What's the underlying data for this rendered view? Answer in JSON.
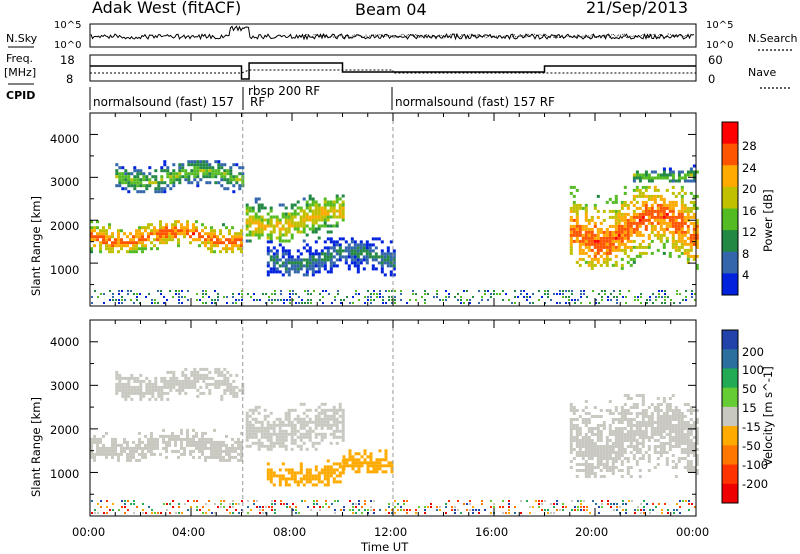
{
  "header": {
    "site": "Adak West (fitACF)",
    "beam": "Beam 04",
    "date": "21/Sep/2013"
  },
  "top_panel": {
    "left_label": "N.Sky",
    "right_label": "N.Search",
    "left_ticks": [
      "10^5",
      "10^0"
    ],
    "right_ticks": [
      "10^5",
      "10^0"
    ]
  },
  "freq_panel": {
    "left_label_1": "Freq.",
    "left_label_2": "[MHz]",
    "right_label": "Nave",
    "left_ticks": [
      "18",
      "8"
    ],
    "right_ticks": [
      "60",
      "0"
    ]
  },
  "cpid": {
    "label": "CPID",
    "modes": [
      {
        "name": "normalsound (fast) 157",
        "suffix": "RF"
      },
      {
        "name": "rbsp 200 RF",
        "suffix": ""
      },
      {
        "name": "normalsound (fast) 157 RF",
        "suffix": ""
      }
    ]
  },
  "x_axis": {
    "label": "Time UT",
    "ticks": [
      "00:00",
      "04:00",
      "08:00",
      "12:00",
      "16:00",
      "20:00",
      "00:00"
    ]
  },
  "power_panel": {
    "ylabel": "Slant Range [km]",
    "yticks": [
      "4000",
      "3000",
      "2000",
      "1000"
    ],
    "colorbar_label": "Power [dB]",
    "colorbar_ticks": [
      "28",
      "24",
      "20",
      "16",
      "12",
      "8",
      "4"
    ],
    "colorbar_colors": [
      "#ff0000",
      "#ff5500",
      "#ffaa00",
      "#c0c000",
      "#55bb22",
      "#228844",
      "#3366aa",
      "#0022dd"
    ]
  },
  "velocity_panel": {
    "ylabel": "Slant Range [km]",
    "yticks": [
      "4000",
      "3000",
      "2000",
      "1000"
    ],
    "colorbar_label": "Velocity [m s^-1]",
    "colorbar_ticks": [
      "200",
      "100",
      "50",
      "15",
      "-15",
      "-50",
      "-100",
      "-200"
    ],
    "colorbar_colors": [
      "#2244aa",
      "#2a6f9e",
      "#22aa55",
      "#66cc33",
      "#c8c8c0",
      "#ffaa00",
      "#ff7700",
      "#ff3300",
      "#ee0000"
    ]
  },
  "chart_data": [
    {
      "type": "heatmap",
      "title": "Adak West (fitACF)",
      "quantity": "Power",
      "xlabel": "Time UT",
      "ylabel": "Slant Range [km]",
      "xlim": [
        "00:00",
        "00:00"
      ],
      "ylim": [
        0,
        4500
      ],
      "colorbar": {
        "label": "Power [dB]",
        "range": [
          0,
          30
        ]
      },
      "echo_regions": [
        {
          "time_start": "00:00",
          "time_end": "06:00",
          "range_min": 1300,
          "range_max": 2000,
          "power_db": 26
        },
        {
          "time_start": "01:00",
          "time_end": "06:00",
          "range_min": 2700,
          "range_max": 3400,
          "power_db": 14
        },
        {
          "time_start": "06:10",
          "time_end": "10:00",
          "range_min": 1500,
          "range_max": 2600,
          "power_db": 20
        },
        {
          "time_start": "07:00",
          "time_end": "12:00",
          "range_min": 700,
          "range_max": 1600,
          "power_db": 8
        },
        {
          "time_start": "19:00",
          "time_end": "00:00",
          "range_min": 900,
          "range_max": 2800,
          "power_db": 26
        },
        {
          "time_start": "21:30",
          "time_end": "00:00",
          "range_min": 2900,
          "range_max": 3300,
          "power_db": 14
        }
      ]
    },
    {
      "type": "heatmap",
      "quantity": "Velocity",
      "xlabel": "Time UT",
      "ylabel": "Slant Range [km]",
      "xlim": [
        "00:00",
        "00:00"
      ],
      "ylim": [
        0,
        4500
      ],
      "colorbar": {
        "label": "Velocity [m s^-1]",
        "range": [
          -250,
          250
        ]
      },
      "echo_regions": [
        {
          "time_start": "00:00",
          "time_end": "06:00",
          "range_min": 1300,
          "range_max": 2000,
          "velocity": 0
        },
        {
          "time_start": "01:00",
          "time_end": "06:00",
          "range_min": 2700,
          "range_max": 3400,
          "velocity": 0
        },
        {
          "time_start": "06:10",
          "time_end": "10:00",
          "range_min": 1500,
          "range_max": 2600,
          "velocity": 0
        },
        {
          "time_start": "07:00",
          "time_end": "10:00",
          "range_min": 700,
          "range_max": 1300,
          "velocity": -50
        },
        {
          "time_start": "10:00",
          "time_end": "12:00",
          "range_min": 1000,
          "range_max": 1600,
          "velocity": -50
        },
        {
          "time_start": "19:00",
          "time_end": "00:00",
          "range_min": 900,
          "range_max": 2800,
          "velocity": 0
        }
      ]
    }
  ]
}
